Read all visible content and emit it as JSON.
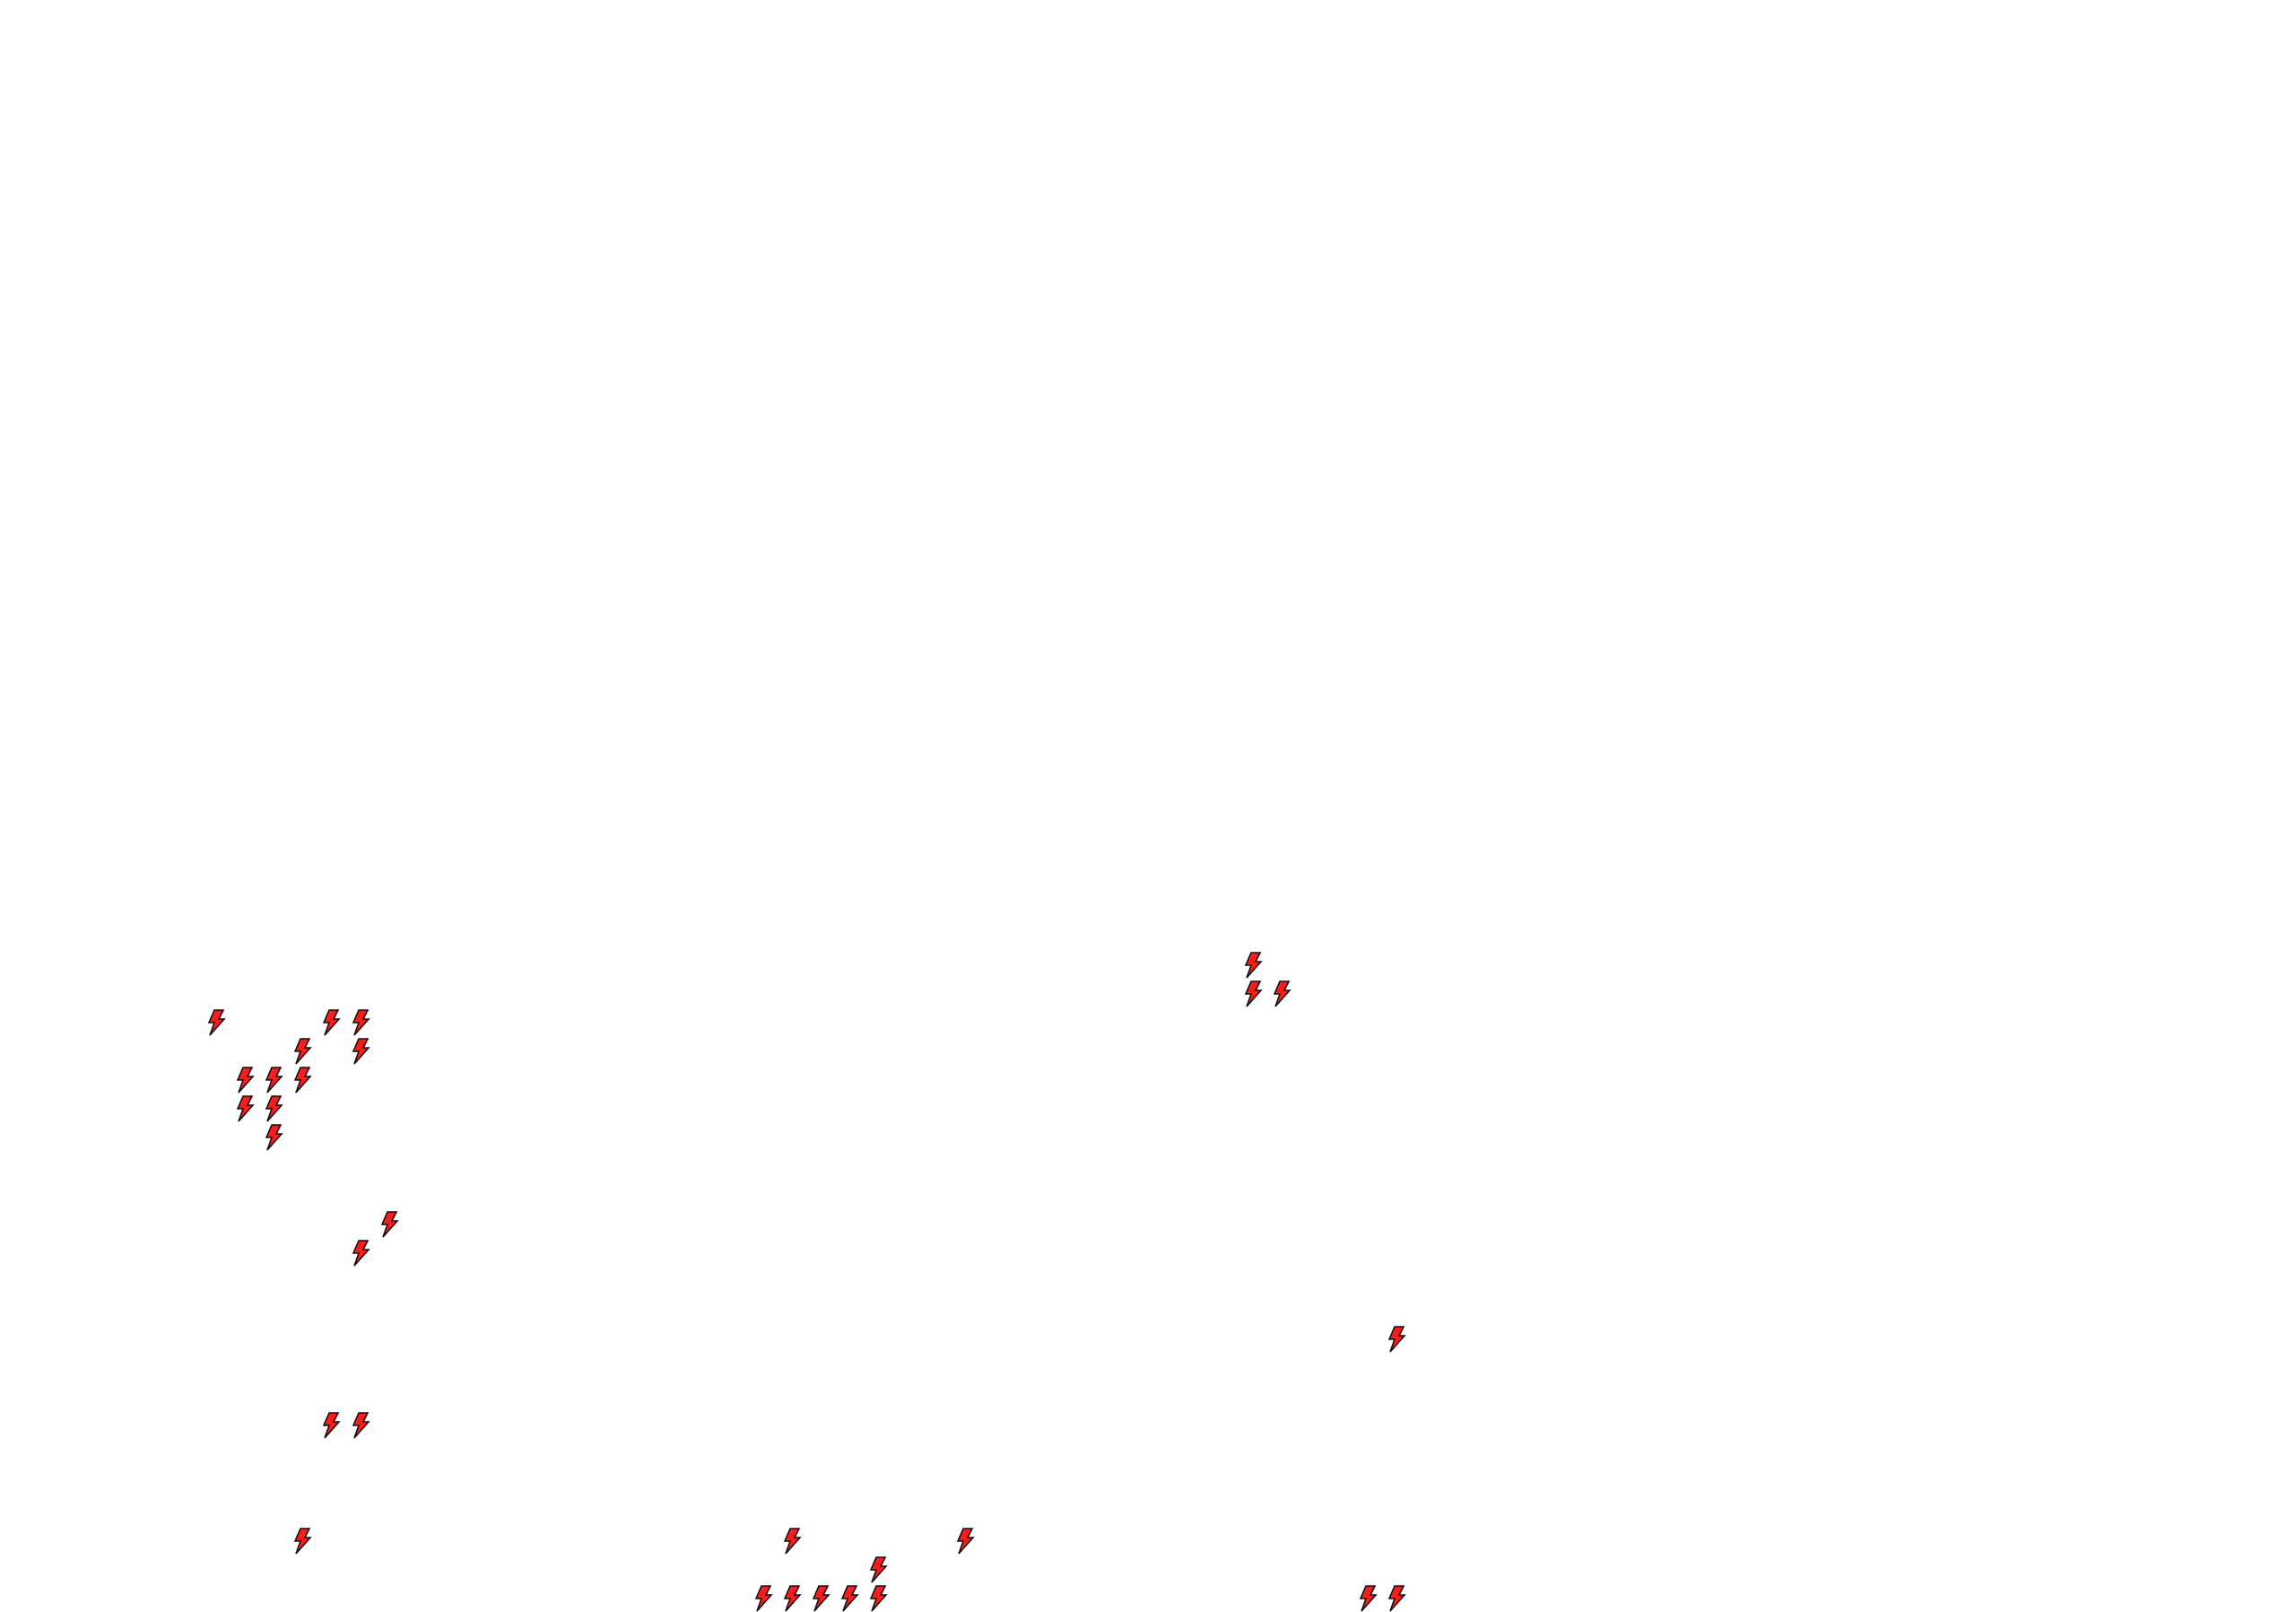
{
  "map": {
    "marker_icon": "lightning-bolt-icon",
    "marker_fill": "#ff1a1a",
    "marker_stroke": "#111111",
    "background": "#ffffff"
  }
}
